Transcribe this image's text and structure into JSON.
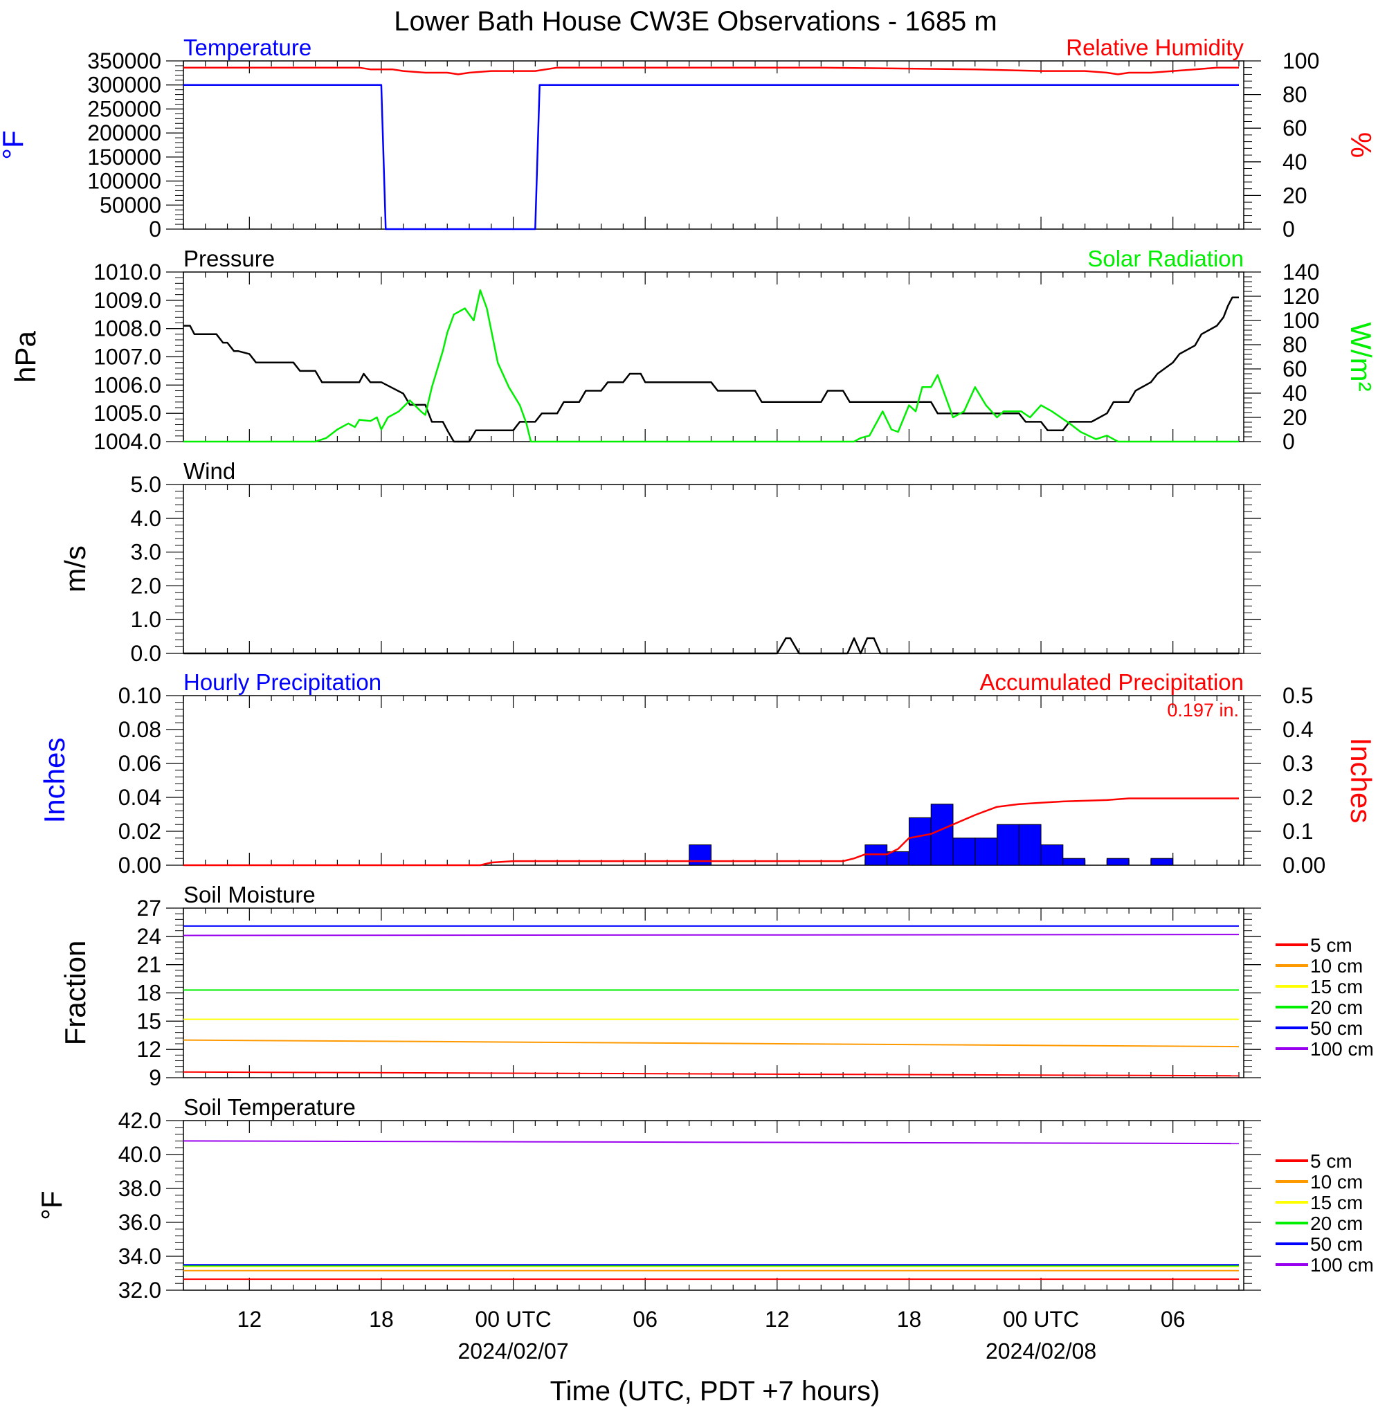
{
  "title": "Lower Bath House CW3E Observations - 1685 m",
  "x_axis": {
    "label": "Time (UTC, PDT +7 hours)",
    "ticks": [
      "12",
      "18",
      "00 UTC",
      "06",
      "12",
      "18",
      "00 UTC",
      "06"
    ],
    "dates": [
      "2024/02/07",
      "2024/02/08"
    ]
  },
  "colors": {
    "temperature": "#0000ff",
    "humidity": "#ff0000",
    "pressure": "#000000",
    "solar": "#00ee00",
    "wind": "#000000",
    "hourly_precip": "#0000ff",
    "accum_precip": "#ff0000"
  },
  "legend_depths": [
    {
      "label": "5 cm",
      "color": "#ff0000"
    },
    {
      "label": "10 cm",
      "color": "#ff9900"
    },
    {
      "label": "15 cm",
      "color": "#ffff00"
    },
    {
      "label": "20 cm",
      "color": "#00ee00"
    },
    {
      "label": "50 cm",
      "color": "#0000ff"
    },
    {
      "label": "100 cm",
      "color": "#9900ee"
    }
  ],
  "chart_data": [
    {
      "type": "line",
      "left_title": "Temperature",
      "right_title": "Relative Humidity",
      "ylabel": "°F",
      "ylabel_right": "%",
      "ylim": [
        0,
        350000
      ],
      "ylim_right": [
        0,
        100
      ],
      "yticks": [
        "0",
        "50000",
        "100000",
        "150000",
        "200000",
        "250000",
        "300000",
        "350000"
      ],
      "yticks_right": [
        "0",
        "20",
        "40",
        "60",
        "80",
        "100"
      ],
      "series": [
        {
          "name": "Temperature",
          "axis": "left",
          "color": "#0000ff",
          "x": [
            0,
            9,
            9.2,
            16,
            16.2,
            48
          ],
          "y": [
            300000,
            300000,
            0,
            0,
            300000,
            300000
          ]
        },
        {
          "name": "Relative Humidity",
          "axis": "right",
          "color": "#ff0000",
          "x": [
            0,
            8,
            8.5,
            9.5,
            10,
            11,
            12,
            12.5,
            13,
            14,
            15,
            16,
            17,
            24,
            29,
            36,
            39,
            40,
            41,
            42,
            42.5,
            43,
            44,
            45,
            46,
            47,
            48
          ],
          "y": [
            96,
            96,
            95,
            95,
            94,
            93,
            93,
            92,
            93,
            94,
            94,
            94,
            96,
            96,
            96,
            95,
            94,
            94,
            94,
            93,
            92,
            93,
            93,
            94,
            95,
            96,
            96
          ]
        }
      ]
    },
    {
      "type": "line",
      "left_title": "Pressure",
      "right_title": "Solar Radiation",
      "ylabel": "hPa",
      "ylabel_right": "W/m²",
      "ylim": [
        1004.0,
        1010.0
      ],
      "ylim_right": [
        0,
        140
      ],
      "yticks": [
        "1004.0",
        "1005.0",
        "1006.0",
        "1007.0",
        "1008.0",
        "1009.0",
        "1010.0"
      ],
      "yticks_right": [
        "0",
        "20",
        "40",
        "60",
        "80",
        "100",
        "120",
        "140"
      ],
      "series": [
        {
          "name": "Pressure",
          "axis": "left",
          "color": "#000000",
          "x": [
            0,
            0.3,
            0.5,
            1.5,
            1.8,
            2,
            2.3,
            2.5,
            3,
            3.3,
            5,
            5.3,
            6,
            6.3,
            8,
            8.2,
            8.5,
            9,
            10,
            10.3,
            11,
            11.3,
            11.8,
            12,
            12.3,
            13,
            13.3,
            14,
            14.3,
            15,
            15.3,
            16,
            16.3,
            17,
            17.3,
            18,
            18.3,
            19,
            19.3,
            20,
            20.3,
            20.8,
            21,
            21.3,
            24,
            24.3,
            25,
            25.3,
            26,
            26.3,
            29,
            29.3,
            30,
            30.3,
            34,
            34.3,
            38,
            38.3,
            39,
            39.3,
            40,
            40.3,
            41,
            41.3,
            42,
            42.3,
            43,
            43.3,
            44,
            44.3,
            45,
            45.3,
            46,
            46.3,
            47,
            47.3,
            47.5,
            47.7,
            48
          ],
          "y": [
            1008.1,
            1008.1,
            1007.8,
            1007.8,
            1007.5,
            1007.5,
            1007.2,
            1007.2,
            1007.1,
            1006.8,
            1006.8,
            1006.5,
            1006.5,
            1006.1,
            1006.1,
            1006.4,
            1006.1,
            1006.1,
            1005.7,
            1005.3,
            1005.3,
            1004.7,
            1004.7,
            1004.4,
            1004.0,
            1004.0,
            1004.4,
            1004.4,
            1004.4,
            1004.4,
            1004.7,
            1004.7,
            1005.0,
            1005.0,
            1005.4,
            1005.4,
            1005.8,
            1005.8,
            1006.1,
            1006.1,
            1006.4,
            1006.4,
            1006.1,
            1006.1,
            1006.1,
            1005.8,
            1005.8,
            1005.8,
            1005.8,
            1005.4,
            1005.4,
            1005.8,
            1005.8,
            1005.4,
            1005.4,
            1005.0,
            1005.0,
            1004.7,
            1004.7,
            1004.4,
            1004.4,
            1004.7,
            1004.7,
            1004.7,
            1005.0,
            1005.4,
            1005.4,
            1005.8,
            1006.1,
            1006.4,
            1006.8,
            1007.1,
            1007.4,
            1007.8,
            1008.1,
            1008.4,
            1008.8,
            1009.1,
            1009.1
          ]
        },
        {
          "name": "Solar Radiation",
          "axis": "right",
          "color": "#00ee00",
          "x": [
            0,
            6,
            6.5,
            7,
            7.5,
            7.8,
            8,
            8.5,
            8.8,
            9,
            9.3,
            9.8,
            10.3,
            10.8,
            11.0,
            11.3,
            11.8,
            12.0,
            12.3,
            12.8,
            13.2,
            13.5,
            13.8,
            14.3,
            14.8,
            15.3,
            15.6,
            15.8,
            30.5,
            30.8,
            31.2,
            31.8,
            32.2,
            32.5,
            33,
            33.3,
            33.6,
            34,
            34.3,
            35,
            35.5,
            36,
            36.5,
            37,
            37.3,
            37.8,
            38.1,
            38.5,
            39,
            39.5,
            40.3,
            40.8,
            41.5,
            42,
            42.5,
            43,
            48
          ],
          "y": [
            0,
            0,
            3,
            10,
            15,
            12,
            18,
            17,
            20,
            10,
            20,
            25,
            34,
            25,
            22,
            45,
            75,
            90,
            105,
            110,
            100,
            125,
            110,
            65,
            45,
            30,
            15,
            0,
            0,
            3,
            5,
            25,
            10,
            8,
            30,
            25,
            45,
            45,
            55,
            20,
            25,
            45,
            30,
            20,
            25,
            25,
            25,
            20,
            30,
            25,
            15,
            8,
            2,
            5,
            0,
            0,
            0
          ]
        }
      ]
    },
    {
      "type": "line",
      "left_title": "Wind",
      "ylabel": "m/s",
      "ylim": [
        0.0,
        5.0
      ],
      "yticks": [
        "0.0",
        "1.0",
        "2.0",
        "3.0",
        "4.0",
        "5.0"
      ],
      "series": [
        {
          "name": "Wind",
          "axis": "left",
          "color": "#000000",
          "x": [
            0,
            27,
            27.4,
            27.6,
            28,
            30.2,
            30.5,
            30.8,
            31.1,
            31.4,
            31.7,
            48
          ],
          "y": [
            0,
            0,
            0.45,
            0.45,
            0,
            0,
            0.45,
            0,
            0.45,
            0.45,
            0,
            0
          ]
        }
      ]
    },
    {
      "type": "bar",
      "left_title": "Hourly Precipitation",
      "right_title": "Accumulated Precipitation",
      "annotation": "0.197 in.",
      "ylabel": "Inches",
      "ylabel_right": "Inches",
      "ylim": [
        0,
        0.1
      ],
      "ylim_right": [
        0,
        0.5
      ],
      "yticks": [
        "0.00",
        "0.02",
        "0.04",
        "0.06",
        "0.08",
        "0.10"
      ],
      "yticks_right": [
        "0.00",
        "0.1",
        "0.2",
        "0.3",
        "0.4",
        "0.5"
      ],
      "bars": {
        "name": "Hourly Precipitation",
        "color": "#0000ff",
        "x": [
          23,
          31,
          32,
          33,
          34,
          35,
          36,
          37,
          38,
          39,
          40,
          42,
          44
        ],
        "values": [
          0.012,
          0.012,
          0.008,
          0.028,
          0.036,
          0.016,
          0.016,
          0.024,
          0.024,
          0.012,
          0.004,
          0.004,
          0.004
        ]
      },
      "series": [
        {
          "name": "Accumulated Precipitation",
          "axis": "right",
          "color": "#ff0000",
          "x": [
            0,
            13.5,
            14,
            15,
            30,
            30.5,
            31,
            32,
            32.5,
            33,
            34,
            35,
            36,
            36.5,
            37,
            38,
            39,
            40,
            42,
            43,
            48
          ],
          "y": [
            0,
            0,
            0.008,
            0.012,
            0.012,
            0.02,
            0.032,
            0.032,
            0.048,
            0.08,
            0.092,
            0.12,
            0.148,
            0.16,
            0.172,
            0.18,
            0.184,
            0.188,
            0.192,
            0.197,
            0.197
          ]
        }
      ]
    },
    {
      "type": "line",
      "left_title": "Soil Moisture",
      "ylabel": "Fraction",
      "ylim": [
        9,
        27
      ],
      "yticks": [
        "9",
        "12",
        "15",
        "18",
        "21",
        "24",
        "27"
      ],
      "series": [
        {
          "name": "5 cm",
          "color": "#ff0000",
          "x": [
            0,
            48
          ],
          "y": [
            9.6,
            9.2
          ]
        },
        {
          "name": "10 cm",
          "color": "#ff9900",
          "x": [
            0,
            48
          ],
          "y": [
            13.0,
            12.3
          ]
        },
        {
          "name": "15 cm",
          "color": "#ffff00",
          "x": [
            0,
            48
          ],
          "y": [
            15.2,
            15.2
          ]
        },
        {
          "name": "20 cm",
          "color": "#00ee00",
          "x": [
            0,
            48
          ],
          "y": [
            18.3,
            18.3
          ]
        },
        {
          "name": "50 cm",
          "color": "#0000ff",
          "x": [
            0,
            48
          ],
          "y": [
            25.1,
            25.1
          ]
        },
        {
          "name": "100 cm",
          "color": "#9900ee",
          "x": [
            0,
            48
          ],
          "y": [
            24.1,
            24.2
          ]
        }
      ]
    },
    {
      "type": "line",
      "left_title": "Soil Temperature",
      "ylabel": "°F",
      "ylim": [
        32.0,
        42.0
      ],
      "yticks": [
        "32.0",
        "34.0",
        "36.0",
        "38.0",
        "40.0",
        "42.0"
      ],
      "series": [
        {
          "name": "5 cm",
          "color": "#ff0000",
          "x": [
            0,
            48
          ],
          "y": [
            32.65,
            32.65
          ]
        },
        {
          "name": "10 cm",
          "color": "#ff9900",
          "x": [
            0,
            48
          ],
          "y": [
            33.15,
            33.15
          ]
        },
        {
          "name": "15 cm",
          "color": "#ffff00",
          "x": [
            0,
            48
          ],
          "y": [
            33.4,
            33.4
          ]
        },
        {
          "name": "20 cm",
          "color": "#00ee00",
          "x": [
            0,
            48
          ],
          "y": [
            33.45,
            33.45
          ]
        },
        {
          "name": "50 cm",
          "color": "#0000ff",
          "x": [
            0,
            48
          ],
          "y": [
            33.5,
            33.5
          ]
        },
        {
          "name": "100 cm",
          "color": "#9900ee",
          "x": [
            0,
            48
          ],
          "y": [
            40.8,
            40.65
          ]
        }
      ]
    }
  ]
}
